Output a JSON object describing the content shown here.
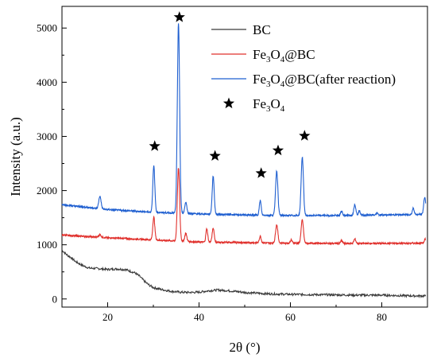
{
  "chart_data": {
    "type": "line",
    "title": "",
    "xlabel": "2θ (°)",
    "ylabel": "Intensity (a.u.)",
    "xlim": [
      10,
      90
    ],
    "ylim": [
      -150,
      5400
    ],
    "x_ticks": [
      20,
      40,
      60,
      80
    ],
    "y_ticks": [
      0,
      1000,
      2000,
      3000,
      4000,
      5000
    ],
    "grid": false,
    "legend_position": "top-right",
    "marker_label": "Fe3O4",
    "series": [
      {
        "name": "BC",
        "legend_main": "BC",
        "color": "#3a3a3a",
        "points": [
          [
            10,
            900
          ],
          [
            11,
            820
          ],
          [
            12,
            760
          ],
          [
            13,
            690
          ],
          [
            14,
            640
          ],
          [
            15,
            600
          ],
          [
            16,
            570
          ],
          [
            18,
            560
          ],
          [
            20,
            545
          ],
          [
            22,
            555
          ],
          [
            24,
            540
          ],
          [
            26,
            480
          ],
          [
            27,
            420
          ],
          [
            28,
            330
          ],
          [
            29,
            260
          ],
          [
            30,
            210
          ],
          [
            32,
            170
          ],
          [
            34,
            140
          ],
          [
            36,
            125
          ],
          [
            38,
            120
          ],
          [
            40,
            125
          ],
          [
            42,
            150
          ],
          [
            44,
            165
          ],
          [
            46,
            155
          ],
          [
            48,
            140
          ],
          [
            50,
            120
          ],
          [
            55,
            95
          ],
          [
            60,
            85
          ],
          [
            65,
            80
          ],
          [
            70,
            75
          ],
          [
            75,
            70
          ],
          [
            80,
            70
          ],
          [
            85,
            60
          ],
          [
            89,
            55
          ]
        ]
      },
      {
        "name": "Fe3O4@BC",
        "legend_main": "Fe",
        "legend_parts": [
          "3",
          "O",
          "4",
          "@BC"
        ],
        "color": "#e0302c",
        "baseline": [
          [
            10,
            1180
          ],
          [
            20,
            1130
          ],
          [
            30,
            1090
          ],
          [
            40,
            1050
          ],
          [
            50,
            1040
          ],
          [
            60,
            1030
          ],
          [
            70,
            1025
          ],
          [
            80,
            1025
          ],
          [
            89,
            1030
          ]
        ],
        "peaks": [
          [
            18.3,
            50,
            0.25
          ],
          [
            30.1,
            420,
            0.22
          ],
          [
            35.5,
            1350,
            0.25
          ],
          [
            37.1,
            150,
            0.22
          ],
          [
            41.7,
            250,
            0.2
          ],
          [
            43.1,
            260,
            0.22
          ],
          [
            53.4,
            120,
            0.2
          ],
          [
            57.0,
            340,
            0.25
          ],
          [
            60.2,
            60,
            0.2
          ],
          [
            62.6,
            430,
            0.25
          ],
          [
            71.2,
            50,
            0.2
          ],
          [
            74.1,
            80,
            0.22
          ],
          [
            89.5,
            80,
            0.2
          ]
        ]
      },
      {
        "name": "Fe3O4@BC(after reaction)",
        "legend_main": "Fe",
        "legend_parts": [
          "3",
          "O",
          "4",
          "@BC(after reaction)"
        ],
        "color": "#1f5fd0",
        "baseline": [
          [
            10,
            1740
          ],
          [
            20,
            1650
          ],
          [
            30,
            1600
          ],
          [
            40,
            1570
          ],
          [
            50,
            1550
          ],
          [
            60,
            1540
          ],
          [
            70,
            1540
          ],
          [
            80,
            1550
          ],
          [
            89,
            1560
          ]
        ],
        "peaks": [
          [
            18.3,
            230,
            0.25
          ],
          [
            30.1,
            850,
            0.22
          ],
          [
            35.5,
            3500,
            0.25
          ],
          [
            37.1,
            210,
            0.22
          ],
          [
            43.1,
            700,
            0.22
          ],
          [
            53.4,
            270,
            0.2
          ],
          [
            57.0,
            820,
            0.25
          ],
          [
            62.6,
            1080,
            0.25
          ],
          [
            71.2,
            80,
            0.2
          ],
          [
            74.1,
            200,
            0.22
          ],
          [
            75.1,
            80,
            0.2
          ],
          [
            79.0,
            40,
            0.2
          ],
          [
            86.9,
            120,
            0.2
          ],
          [
            89.4,
            320,
            0.22
          ]
        ]
      }
    ],
    "star_markers": [
      [
        30.3,
        2820
      ],
      [
        35.7,
        5200
      ],
      [
        43.5,
        2640
      ],
      [
        53.6,
        2320
      ],
      [
        57.3,
        2740
      ],
      [
        63.1,
        3010
      ]
    ]
  }
}
